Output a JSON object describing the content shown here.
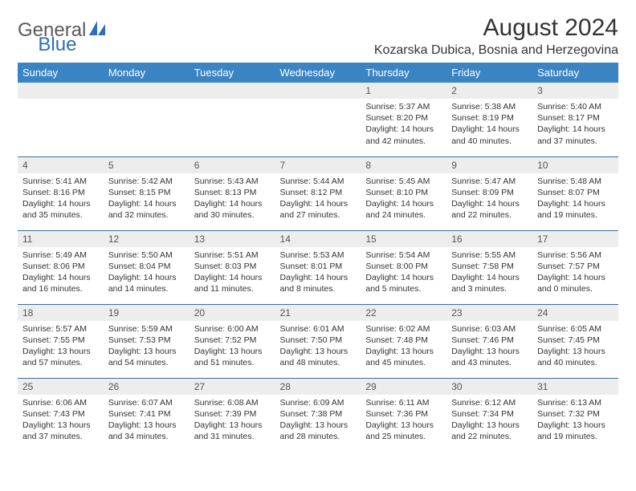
{
  "logo": {
    "part1": "General",
    "part2": "Blue"
  },
  "title": "August 2024",
  "location": "Kozarska Dubica, Bosnia and Herzegovina",
  "colors": {
    "header_bg": "#3b84c4",
    "header_text": "#ffffff",
    "daynum_bg": "#ededed",
    "row_border": "#3b6d9a",
    "logo_gray": "#5a5a5a",
    "logo_blue": "#2d6fb4"
  },
  "day_names": [
    "Sunday",
    "Monday",
    "Tuesday",
    "Wednesday",
    "Thursday",
    "Friday",
    "Saturday"
  ],
  "weeks": [
    [
      null,
      null,
      null,
      null,
      {
        "n": "1",
        "sr": "5:37 AM",
        "ss": "8:20 PM",
        "dl": "14 hours and 42 minutes."
      },
      {
        "n": "2",
        "sr": "5:38 AM",
        "ss": "8:19 PM",
        "dl": "14 hours and 40 minutes."
      },
      {
        "n": "3",
        "sr": "5:40 AM",
        "ss": "8:17 PM",
        "dl": "14 hours and 37 minutes."
      }
    ],
    [
      {
        "n": "4",
        "sr": "5:41 AM",
        "ss": "8:16 PM",
        "dl": "14 hours and 35 minutes."
      },
      {
        "n": "5",
        "sr": "5:42 AM",
        "ss": "8:15 PM",
        "dl": "14 hours and 32 minutes."
      },
      {
        "n": "6",
        "sr": "5:43 AM",
        "ss": "8:13 PM",
        "dl": "14 hours and 30 minutes."
      },
      {
        "n": "7",
        "sr": "5:44 AM",
        "ss": "8:12 PM",
        "dl": "14 hours and 27 minutes."
      },
      {
        "n": "8",
        "sr": "5:45 AM",
        "ss": "8:10 PM",
        "dl": "14 hours and 24 minutes."
      },
      {
        "n": "9",
        "sr": "5:47 AM",
        "ss": "8:09 PM",
        "dl": "14 hours and 22 minutes."
      },
      {
        "n": "10",
        "sr": "5:48 AM",
        "ss": "8:07 PM",
        "dl": "14 hours and 19 minutes."
      }
    ],
    [
      {
        "n": "11",
        "sr": "5:49 AM",
        "ss": "8:06 PM",
        "dl": "14 hours and 16 minutes."
      },
      {
        "n": "12",
        "sr": "5:50 AM",
        "ss": "8:04 PM",
        "dl": "14 hours and 14 minutes."
      },
      {
        "n": "13",
        "sr": "5:51 AM",
        "ss": "8:03 PM",
        "dl": "14 hours and 11 minutes."
      },
      {
        "n": "14",
        "sr": "5:53 AM",
        "ss": "8:01 PM",
        "dl": "14 hours and 8 minutes."
      },
      {
        "n": "15",
        "sr": "5:54 AM",
        "ss": "8:00 PM",
        "dl": "14 hours and 5 minutes."
      },
      {
        "n": "16",
        "sr": "5:55 AM",
        "ss": "7:58 PM",
        "dl": "14 hours and 3 minutes."
      },
      {
        "n": "17",
        "sr": "5:56 AM",
        "ss": "7:57 PM",
        "dl": "14 hours and 0 minutes."
      }
    ],
    [
      {
        "n": "18",
        "sr": "5:57 AM",
        "ss": "7:55 PM",
        "dl": "13 hours and 57 minutes."
      },
      {
        "n": "19",
        "sr": "5:59 AM",
        "ss": "7:53 PM",
        "dl": "13 hours and 54 minutes."
      },
      {
        "n": "20",
        "sr": "6:00 AM",
        "ss": "7:52 PM",
        "dl": "13 hours and 51 minutes."
      },
      {
        "n": "21",
        "sr": "6:01 AM",
        "ss": "7:50 PM",
        "dl": "13 hours and 48 minutes."
      },
      {
        "n": "22",
        "sr": "6:02 AM",
        "ss": "7:48 PM",
        "dl": "13 hours and 45 minutes."
      },
      {
        "n": "23",
        "sr": "6:03 AM",
        "ss": "7:46 PM",
        "dl": "13 hours and 43 minutes."
      },
      {
        "n": "24",
        "sr": "6:05 AM",
        "ss": "7:45 PM",
        "dl": "13 hours and 40 minutes."
      }
    ],
    [
      {
        "n": "25",
        "sr": "6:06 AM",
        "ss": "7:43 PM",
        "dl": "13 hours and 37 minutes."
      },
      {
        "n": "26",
        "sr": "6:07 AM",
        "ss": "7:41 PM",
        "dl": "13 hours and 34 minutes."
      },
      {
        "n": "27",
        "sr": "6:08 AM",
        "ss": "7:39 PM",
        "dl": "13 hours and 31 minutes."
      },
      {
        "n": "28",
        "sr": "6:09 AM",
        "ss": "7:38 PM",
        "dl": "13 hours and 28 minutes."
      },
      {
        "n": "29",
        "sr": "6:11 AM",
        "ss": "7:36 PM",
        "dl": "13 hours and 25 minutes."
      },
      {
        "n": "30",
        "sr": "6:12 AM",
        "ss": "7:34 PM",
        "dl": "13 hours and 22 minutes."
      },
      {
        "n": "31",
        "sr": "6:13 AM",
        "ss": "7:32 PM",
        "dl": "13 hours and 19 minutes."
      }
    ]
  ],
  "labels": {
    "sunrise": "Sunrise:",
    "sunset": "Sunset:",
    "daylight": "Daylight:"
  }
}
